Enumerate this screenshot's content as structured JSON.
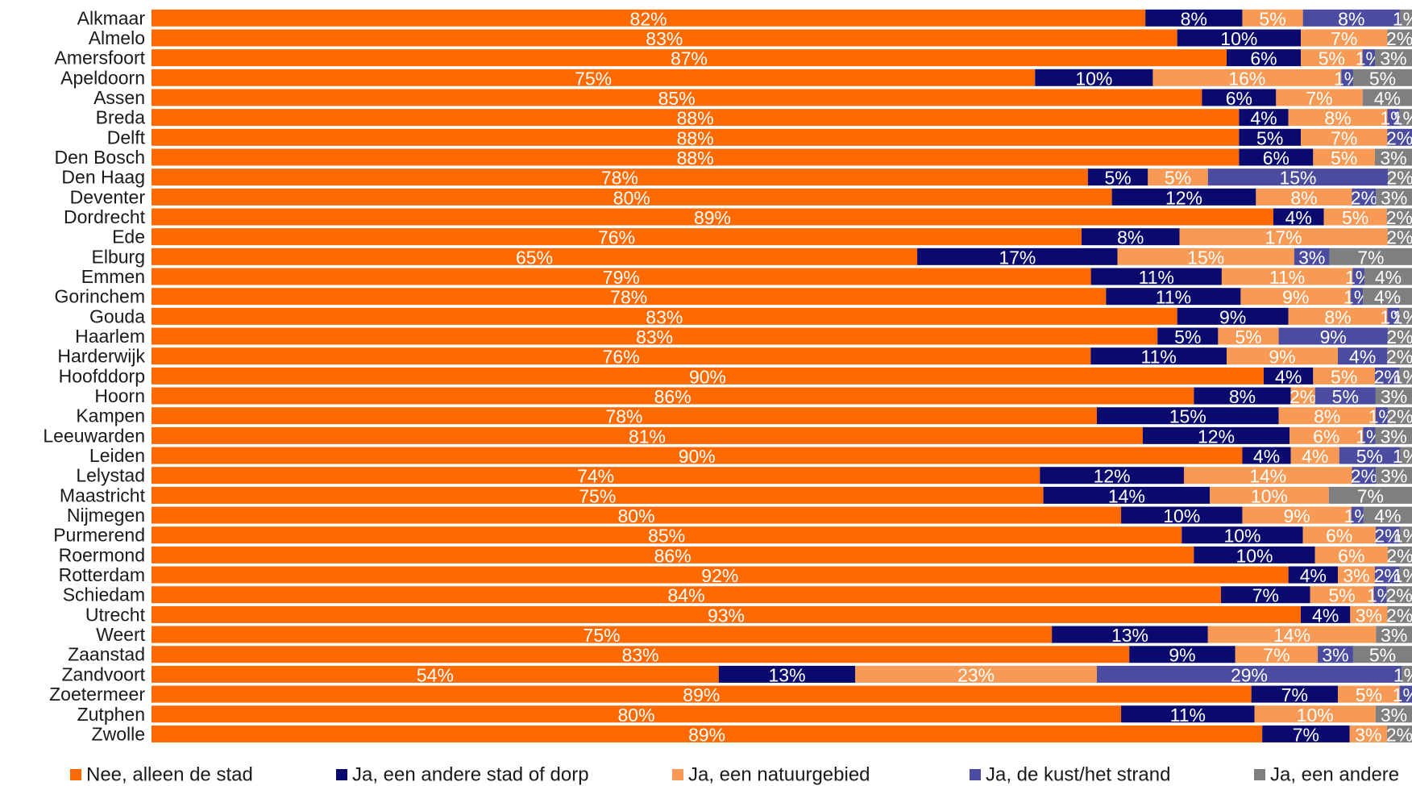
{
  "chart_data": {
    "type": "bar",
    "orientation": "horizontal",
    "stacked": true,
    "normalized": true,
    "categories": [
      "Alkmaar",
      "Almelo",
      "Amersfoort",
      "Apeldoorn",
      "Assen",
      "Breda",
      "Delft",
      "Den Bosch",
      "Den Haag",
      "Deventer",
      "Dordrecht",
      "Ede",
      "Elburg",
      "Emmen",
      "Gorinchem",
      "Gouda",
      "Haarlem",
      "Harderwijk",
      "Hoofddorp",
      "Hoorn",
      "Kampen",
      "Leeuwarden",
      "Leiden",
      "Lelystad",
      "Maastricht",
      "Nijmegen",
      "Purmerend",
      "Roermond",
      "Rotterdam",
      "Schiedam",
      "Utrecht",
      "Weert",
      "Zaanstad",
      "Zandvoort",
      "Zoetermeer",
      "Zutphen",
      "Zwolle"
    ],
    "series": [
      {
        "name": "Nee, alleen de stad",
        "color": "#ff6a00",
        "values": [
          82,
          83,
          87,
          75,
          85,
          88,
          88,
          88,
          78,
          80,
          89,
          76,
          65,
          79,
          78,
          83,
          83,
          76,
          90,
          86,
          78,
          81,
          90,
          74,
          75,
          80,
          85,
          86,
          92,
          84,
          93,
          75,
          83,
          54,
          89,
          80,
          89
        ],
        "value_labels": [
          "82%",
          "83%",
          "87%",
          "75%",
          "85%",
          "88%",
          "88%",
          "88%",
          "78%",
          "80%",
          "89%",
          "76%",
          "65%",
          "79%",
          "78%",
          "83%",
          "83%",
          "76%",
          "90%",
          "86%",
          "78%",
          "81%",
          "90%",
          "74%",
          "75%",
          "80%",
          "85%",
          "86%",
          "92%",
          "84%",
          "93%",
          "75%",
          "83%",
          "54%",
          "89%",
          "80%",
          "89%"
        ]
      },
      {
        "name": "Ja, een andere stad of dorp",
        "color": "#0a0a6e",
        "values": [
          8,
          10,
          6,
          10,
          6,
          4,
          5,
          6,
          5,
          12,
          4,
          8,
          17,
          11,
          11,
          9,
          5,
          11,
          4,
          8,
          15,
          12,
          4,
          12,
          14,
          10,
          10,
          10,
          4,
          7,
          4,
          13,
          9,
          13,
          7,
          11,
          7
        ],
        "value_labels": [
          "8%",
          "10%",
          "6%",
          "10%",
          "6%",
          "4%",
          "5%",
          "6%",
          "5%",
          "12%",
          "4%",
          "8%",
          "17%",
          "11%",
          "11%",
          "9%",
          "5%",
          "11%",
          "4%",
          "8%",
          "15%",
          "12%",
          "4%",
          "12%",
          "14%",
          "10%",
          "10%",
          "10%",
          "4%",
          "7%",
          "4%",
          "13%",
          "9%",
          "13%",
          "7%",
          "11%",
          "7%"
        ]
      },
      {
        "name": "Ja, een natuurgebied",
        "color": "#f79a55",
        "values": [
          5,
          7,
          5,
          16,
          7,
          8,
          7,
          5,
          5,
          8,
          5,
          17,
          15,
          11,
          9,
          8,
          5,
          9,
          5,
          2,
          8,
          6,
          4,
          14,
          10,
          9,
          6,
          6,
          3,
          5,
          3,
          14,
          7,
          23,
          5,
          10,
          3
        ],
        "value_labels": [
          "5%",
          "7%",
          "5%",
          "16%",
          "7%",
          "8%",
          "7%",
          "5%",
          "5%",
          "8%",
          "5%",
          "17%",
          "15%",
          "11%",
          "9%",
          "8%",
          "5%",
          "9%",
          "5%",
          "2%",
          "8%",
          "6%",
          "4%",
          "14%",
          "10%",
          "9%",
          "6%",
          "6%",
          "3%",
          "5%",
          "3%",
          "14%",
          "7%",
          "23%",
          "5%",
          "10%",
          "3%"
        ]
      },
      {
        "name": "Ja, de kust/het strand",
        "color": "#4b4ba0",
        "values": [
          8,
          0,
          1,
          1,
          0,
          1,
          2,
          0,
          15,
          2,
          0,
          0,
          3,
          1,
          1,
          1,
          9,
          4,
          2,
          5,
          1,
          1,
          5,
          2,
          0,
          1,
          2,
          0,
          2,
          1,
          0,
          0,
          3,
          29,
          1,
          0,
          0
        ],
        "value_labels": [
          "8%",
          null,
          "1%",
          "1%",
          null,
          "1%",
          "2%",
          null,
          "15%",
          "2%",
          null,
          null,
          "3%",
          "1%",
          "1%",
          "1%",
          "9%",
          "4%",
          "2%",
          "5%",
          "1%",
          "1%",
          "5%",
          "2%",
          null,
          "1%",
          "2%",
          null,
          "2%",
          "1%",
          null,
          null,
          "3%",
          "29%",
          "1%",
          null,
          null
        ]
      },
      {
        "name": "Ja, een andere",
        "color": "#7f7f7f",
        "values": [
          1,
          2,
          3,
          5,
          4,
          1,
          0,
          3,
          2,
          3,
          2,
          2,
          7,
          4,
          4,
          1,
          2,
          2,
          1,
          3,
          2,
          3,
          1,
          3,
          7,
          4,
          1,
          2,
          1,
          2,
          2,
          3,
          5,
          1,
          0,
          3,
          2
        ],
        "value_labels": [
          "1%",
          "2%",
          "3%",
          "5%",
          "4%",
          "1%",
          null,
          "3%",
          "2%",
          "3%",
          "2%",
          "2%",
          "7%",
          "4%",
          "4%",
          "1%",
          "2%",
          "2%",
          "1%",
          "3%",
          "2%",
          "3%",
          "1%",
          "3%",
          "7%",
          "4%",
          "1%",
          "2%",
          "1%",
          "2%",
          "2%",
          "3%",
          "5%",
          "1%",
          null,
          "3%",
          "2%"
        ]
      }
    ],
    "legend": "bottom"
  }
}
